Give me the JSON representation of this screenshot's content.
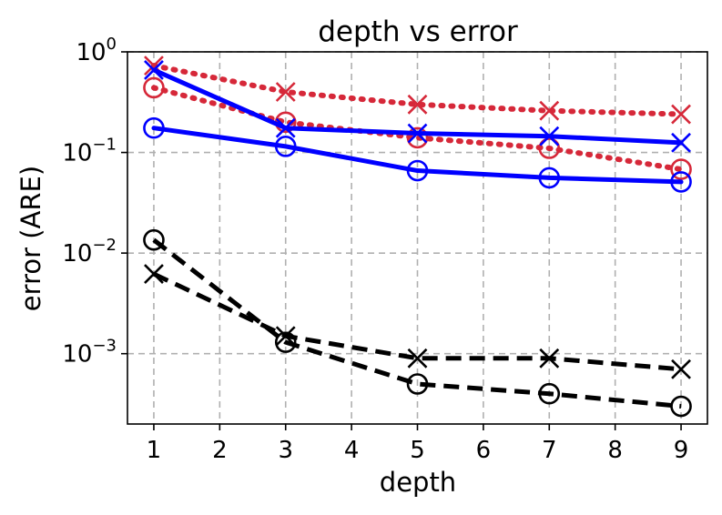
{
  "chart_data": {
    "type": "line",
    "title": "depth vs error",
    "xlabel": "depth",
    "ylabel": "error (ARE)",
    "x_ticks": [
      "1",
      "2",
      "3",
      "4",
      "5",
      "6",
      "7",
      "8",
      "9"
    ],
    "y_ticks": [
      {
        "value": 0.001,
        "base": "10",
        "exp": "−3"
      },
      {
        "value": 0.01,
        "base": "10",
        "exp": "−2"
      },
      {
        "value": 0.1,
        "base": "10",
        "exp": "−1"
      },
      {
        "value": 1,
        "base": "10",
        "exp": "0"
      }
    ],
    "xlim": [
      0.6,
      9.4
    ],
    "ylim": [
      0.0002,
      1.0
    ],
    "yscale": "log",
    "grid": true,
    "legend": "none",
    "x": [
      1,
      3,
      5,
      7,
      9
    ],
    "series": [
      {
        "color": "#d62839",
        "linestyle": "dotted",
        "marker": "x",
        "values": [
          0.73,
          0.4,
          0.3,
          0.26,
          0.24
        ]
      },
      {
        "color": "#d62839",
        "linestyle": "dotted",
        "marker": "o",
        "values": [
          0.44,
          0.2,
          0.14,
          0.11,
          0.068
        ]
      },
      {
        "color": "#0000ff",
        "linestyle": "solid",
        "marker": "x",
        "values": [
          0.66,
          0.175,
          0.155,
          0.145,
          0.125
        ]
      },
      {
        "color": "#0000ff",
        "linestyle": "solid",
        "marker": "o",
        "values": [
          0.175,
          0.115,
          0.066,
          0.056,
          0.051
        ]
      },
      {
        "color": "#000000",
        "linestyle": "dashed",
        "marker": "o",
        "values": [
          0.0135,
          0.0013,
          0.0005,
          0.0004,
          0.0003
        ]
      },
      {
        "color": "#000000",
        "linestyle": "dashed",
        "marker": "x",
        "values": [
          0.0062,
          0.0015,
          0.0009,
          0.0009,
          0.0007
        ]
      }
    ]
  }
}
